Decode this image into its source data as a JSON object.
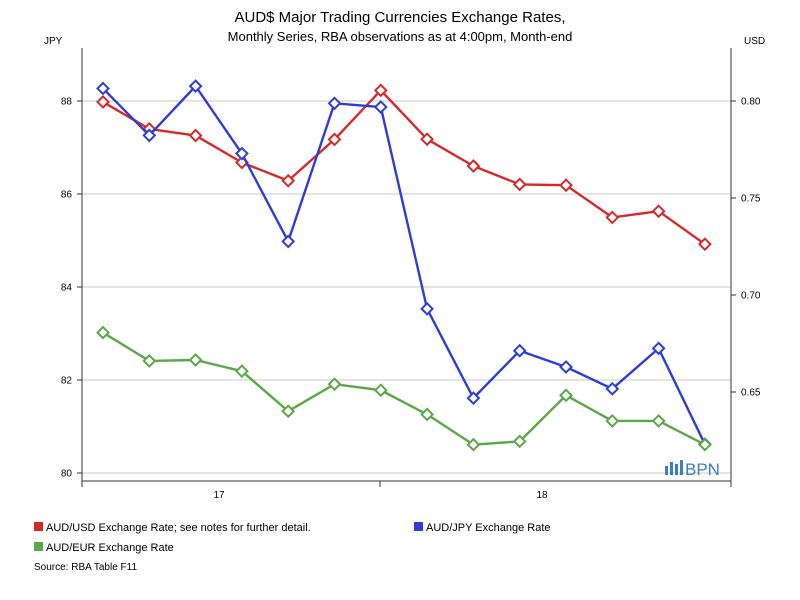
{
  "chart_data": {
    "type": "line",
    "title": "AUD$ Major Trading Currencies Exchange Rates,",
    "subtitle": "Monthly Series, RBA observations as at 4:00pm, Month-end",
    "left_axis": {
      "unit": "JPY",
      "range": [
        80,
        88.9
      ],
      "ticks": [
        80,
        82,
        84,
        86,
        88
      ]
    },
    "right_axis": {
      "unit": "USD",
      "range": [
        0.6113,
        0.8178
      ],
      "ticks": [
        0.65,
        0.7,
        0.75,
        0.8
      ],
      "tick_labels": [
        "0.65",
        "0.70",
        "0.75",
        "0.80"
      ]
    },
    "x_axis": {
      "tick_labels": [
        "17",
        "18"
      ]
    },
    "legend_position": "bottom",
    "series": [
      {
        "name": "AUD/USD Exchange Rate; see notes for further detail.",
        "axis": "right",
        "color": "#d42a2a",
        "values": [
          0.7995,
          0.7856,
          0.7822,
          0.7683,
          0.7589,
          0.7802,
          0.8055,
          0.7803,
          0.7665,
          0.757,
          0.7566,
          0.74,
          0.7432,
          0.7262
        ]
      },
      {
        "name": "AUD/JPY Exchange Rate",
        "axis": "left",
        "color": "#2c3ed6",
        "values": [
          88.27,
          87.26,
          88.32,
          86.87,
          84.98,
          87.95,
          87.87,
          83.53,
          81.61,
          82.63,
          82.28,
          81.81,
          82.68,
          80.62
        ]
      },
      {
        "name": "AUD/EUR Exchange Rate",
        "axis": "left",
        "color": "#5ba847",
        "values": [
          83.02,
          82.41,
          82.43,
          82.19,
          81.33,
          81.91,
          81.78,
          81.26,
          80.61,
          80.68,
          81.67,
          81.12,
          81.12,
          80.61
        ]
      }
    ]
  },
  "source": "Source: RBA Table F11",
  "logo": {
    "text": "BPN"
  }
}
